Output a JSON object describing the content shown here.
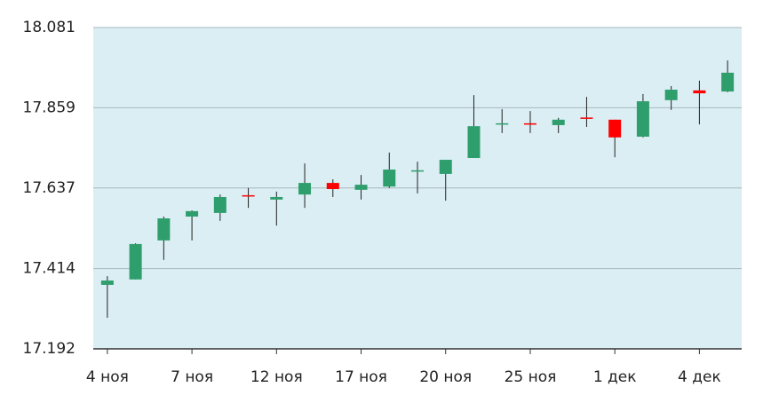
{
  "chart_data": {
    "type": "candlestick",
    "categories": [
      "4 ноя",
      null,
      null,
      "7 ноя",
      null,
      null,
      "12 ноя",
      null,
      null,
      "17 ноя",
      null,
      null,
      "20 ноя",
      null,
      null,
      "25 ноя",
      null,
      null,
      "1 дек",
      null,
      null,
      "4 дек",
      null
    ],
    "open": [
      17.369,
      17.384,
      17.492,
      17.558,
      17.568,
      17.617,
      17.605,
      17.619,
      17.651,
      17.632,
      17.641,
      17.683,
      17.676,
      17.72,
      17.814,
      17.816,
      17.811,
      17.832,
      17.826,
      17.779,
      17.88,
      17.907,
      17.904
    ],
    "high": [
      17.393,
      17.484,
      17.558,
      17.575,
      17.619,
      17.637,
      17.627,
      17.705,
      17.661,
      17.673,
      17.735,
      17.71,
      17.715,
      17.894,
      17.855,
      17.85,
      17.831,
      17.889,
      17.826,
      17.897,
      17.919,
      17.934,
      17.99
    ],
    "low": [
      17.278,
      17.384,
      17.438,
      17.492,
      17.546,
      17.582,
      17.533,
      17.582,
      17.612,
      17.605,
      17.637,
      17.622,
      17.602,
      17.72,
      17.789,
      17.789,
      17.789,
      17.806,
      17.722,
      17.777,
      17.853,
      17.813,
      17.902
    ],
    "close": [
      17.381,
      17.482,
      17.553,
      17.573,
      17.612,
      17.614,
      17.612,
      17.651,
      17.634,
      17.646,
      17.688,
      17.686,
      17.715,
      17.808,
      17.816,
      17.814,
      17.826,
      17.83,
      17.777,
      17.877,
      17.909,
      17.899,
      17.956
    ],
    "up_color": "#2f9e6d",
    "down_color": "#ff0000",
    "background": "#daeef3",
    "ylim": [
      17.192,
      18.081
    ],
    "yticks": [
      17.192,
      17.414,
      17.637,
      17.859,
      18.081
    ],
    "grid": true
  }
}
